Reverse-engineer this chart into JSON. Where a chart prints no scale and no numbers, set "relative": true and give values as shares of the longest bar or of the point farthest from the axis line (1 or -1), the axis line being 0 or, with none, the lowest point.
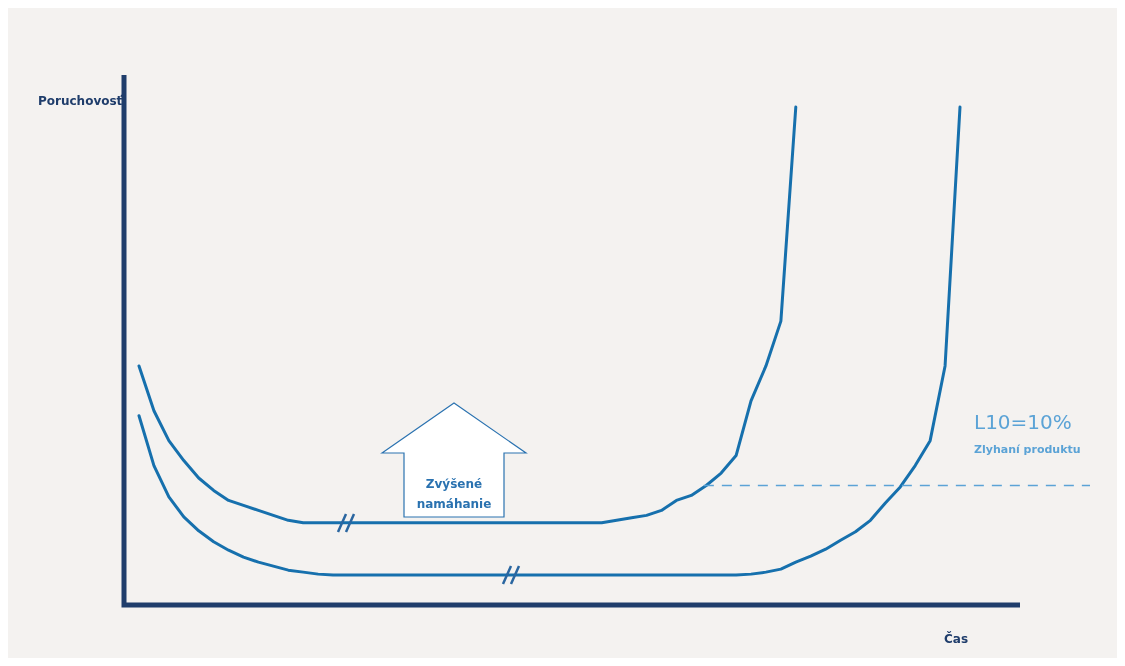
{
  "chart_data": {
    "type": "line",
    "relative": true,
    "xlabel": "Čas",
    "ylabel": "Poruchovosť",
    "categories": [
      null,
      null,
      null,
      null,
      null,
      null,
      null,
      null,
      null,
      null,
      null,
      null,
      null,
      null,
      null,
      null,
      null,
      null,
      null,
      null,
      null,
      null,
      null,
      null,
      null,
      null,
      null,
      null,
      null,
      null,
      null,
      null,
      null,
      null,
      null,
      null,
      null,
      null,
      null,
      null,
      null,
      null,
      null,
      null,
      null,
      null,
      null,
      null,
      null,
      null,
      null,
      null,
      null,
      null,
      null,
      null
    ],
    "series": [
      {
        "color": "#1670ad",
        "values": [
          0.48,
          0.39,
          0.33,
          0.29,
          0.255,
          0.23,
          0.21,
          0.2,
          0.19,
          0.18,
          0.17,
          0.165,
          0.165,
          0.165,
          0.165,
          0.165,
          0.165,
          0.165,
          0.165,
          0.165,
          0.165,
          0.165,
          0.165,
          0.165,
          0.165,
          0.165,
          0.165,
          0.165,
          0.165,
          0.165,
          0.165,
          0.165,
          0.17,
          0.175,
          0.18,
          0.19,
          0.21,
          0.22,
          0.24,
          0.265,
          0.3,
          0.41,
          0.48,
          0.57,
          1.0,
          null,
          null,
          null,
          null,
          null,
          null,
          null,
          null,
          null,
          null,
          null
        ]
      },
      {
        "color": "#1670ad",
        "values": [
          0.38,
          0.28,
          0.217,
          0.177,
          0.149,
          0.127,
          0.11,
          0.096,
          0.086,
          0.078,
          0.07,
          0.066,
          0.062,
          0.06,
          0.06,
          0.06,
          0.06,
          0.06,
          0.06,
          0.06,
          0.06,
          0.06,
          0.06,
          0.06,
          0.06,
          0.06,
          0.06,
          0.06,
          0.06,
          0.06,
          0.06,
          0.06,
          0.06,
          0.06,
          0.06,
          0.06,
          0.06,
          0.06,
          0.06,
          0.06,
          0.06,
          0.062,
          0.066,
          0.072,
          0.086,
          0.098,
          0.112,
          0.13,
          0.147,
          0.17,
          0.205,
          0.237,
          0.28,
          0.33,
          0.48,
          1.0
        ]
      }
    ],
    "ref_lines": [
      {
        "axis": "y",
        "value": 0.24,
        "color": "#5ba3d6",
        "line_style": "dashed"
      }
    ],
    "annotations": [
      "Zvýšené namáhanie",
      "L10=10%",
      "Zlyhaní produktu"
    ],
    "grid": false,
    "legend": false,
    "marker": "none",
    "line_style": "solid"
  }
}
